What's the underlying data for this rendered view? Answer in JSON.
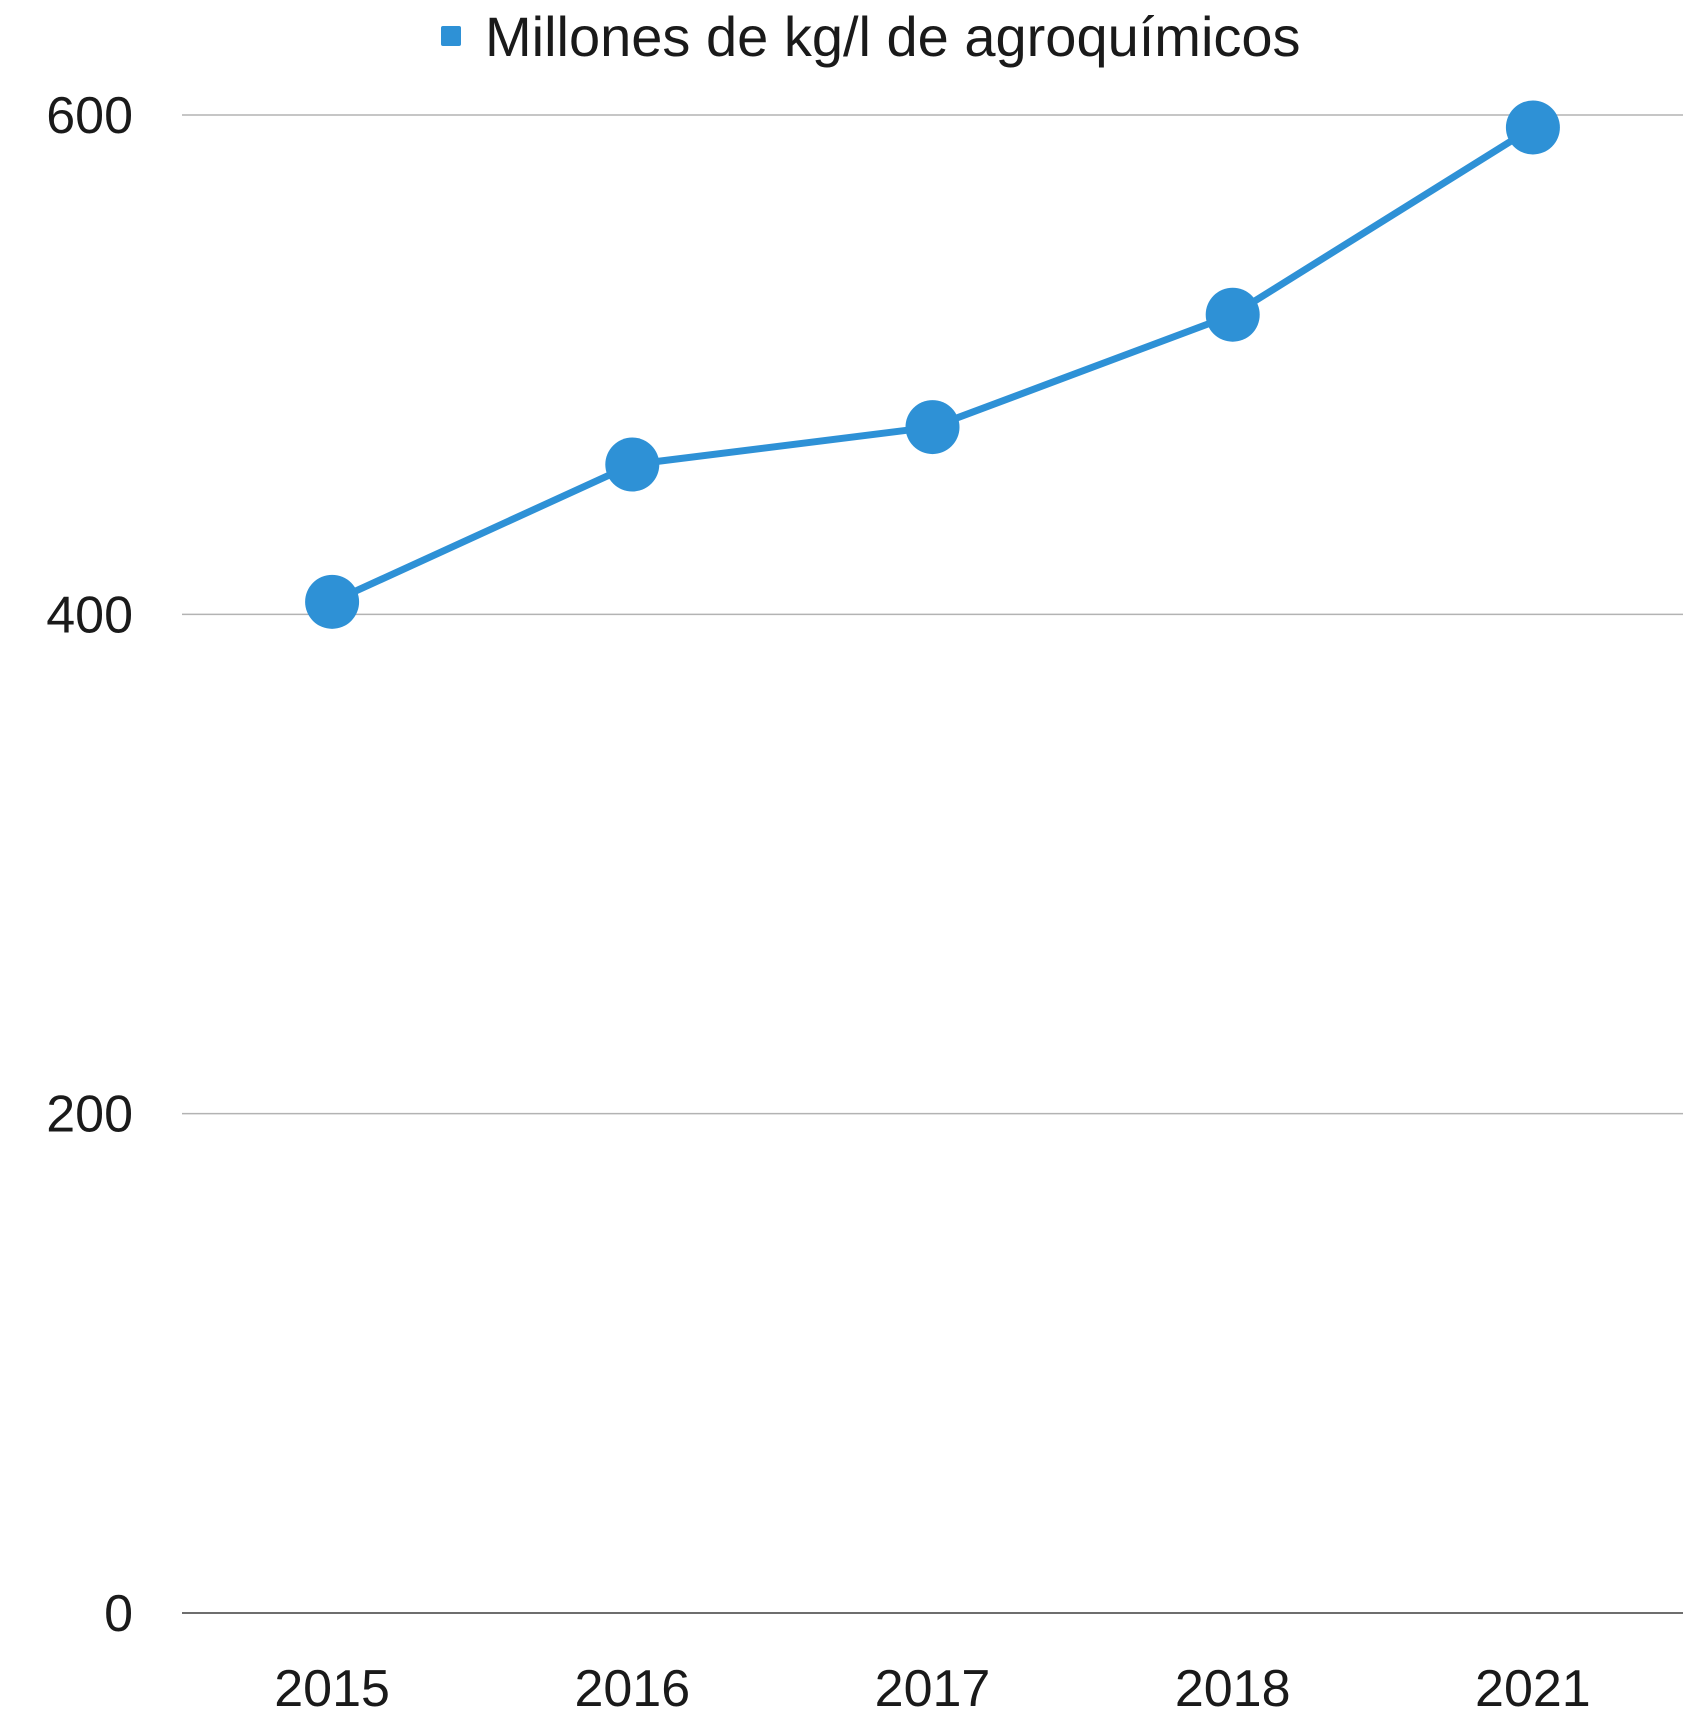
{
  "chart_data": {
    "type": "line",
    "title": "",
    "xlabel": "",
    "ylabel": "",
    "categories": [
      "2015",
      "2016",
      "2017",
      "2018",
      "2021"
    ],
    "series": [
      {
        "name": "Millones de kg/l de agroquímicos",
        "values": [
          405,
          460,
          475,
          520,
          595
        ],
        "color": "#2E91D6"
      }
    ],
    "ylim": [
      0,
      600
    ],
    "yticks": [
      0,
      200,
      400,
      600
    ],
    "ytick_labels": [
      "0",
      "200",
      "400",
      "600"
    ],
    "grid": true,
    "legend_position": "top-center"
  }
}
